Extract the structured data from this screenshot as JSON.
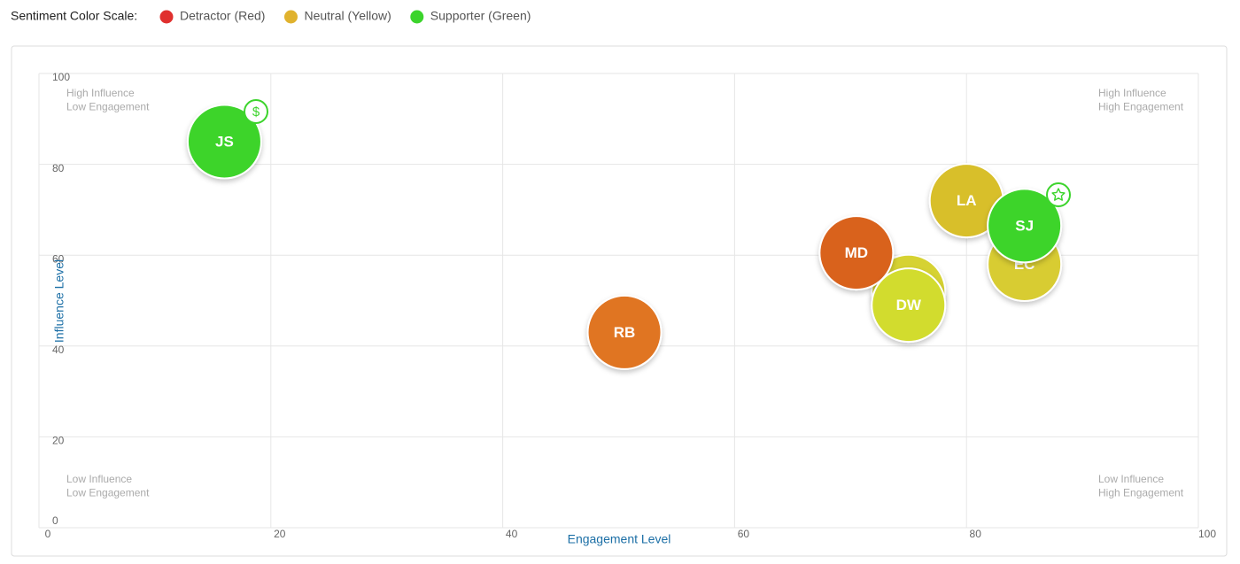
{
  "chart_data": {
    "type": "bubble",
    "legend_title": "Sentiment Color Scale:",
    "legend": [
      {
        "label": "Detractor (Red)",
        "color": "#e0302e"
      },
      {
        "label": "Neutral (Yellow)",
        "color": "#e0b22e"
      },
      {
        "label": "Supporter (Green)",
        "color": "#3cd42c"
      }
    ],
    "xlabel": "Engagement Level",
    "ylabel": "Influence Level",
    "xlim": [
      0,
      100
    ],
    "ylim": [
      0,
      100
    ],
    "xticks": [
      0,
      20,
      40,
      60,
      80,
      100
    ],
    "yticks": [
      0,
      20,
      40,
      60,
      80,
      100
    ],
    "grid": true,
    "quadrant_labels": {
      "top_left": [
        "High Influence",
        "Low Engagement"
      ],
      "top_right": [
        "High Influence",
        "High Engagement"
      ],
      "bottom_left": [
        "Low Influence",
        "Low Engagement"
      ],
      "bottom_right": [
        "Low Influence",
        "High Engagement"
      ]
    },
    "points": {
      "labels": [
        null,
        "JS",
        "RB",
        "MD",
        "LA",
        "EC",
        "SJ",
        "DW"
      ],
      "x": [
        75,
        16,
        50.5,
        70.5,
        80,
        85,
        85,
        75
      ],
      "y": [
        52,
        85,
        43,
        60.5,
        72,
        58,
        66.5,
        49
      ],
      "colors": [
        "#d6d232",
        "#3cd42c",
        "#e07424",
        "#d9621f",
        "#d8bf2c",
        "#d8cc30",
        "#3cd42c",
        "#d2dc2e"
      ]
    }
  }
}
